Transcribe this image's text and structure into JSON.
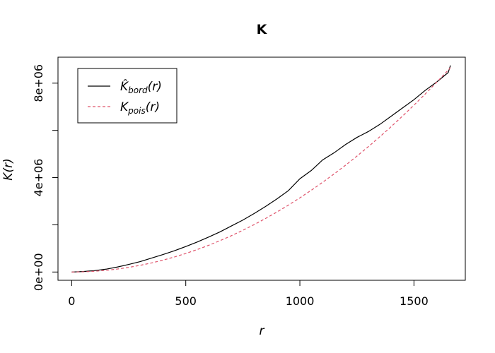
{
  "chart_data": {
    "type": "line",
    "title": "K",
    "xlabel": "r",
    "ylabel": "K(r)",
    "xlim": [
      -60,
      1725
    ],
    "ylim": [
      -350000,
      9100000
    ],
    "x_ticks": [
      0,
      500,
      1000,
      1500
    ],
    "x_tick_labels": [
      "0",
      "500",
      "1000",
      "1500"
    ],
    "y_ticks": [
      0,
      2000000,
      4000000,
      6000000,
      8000000
    ],
    "y_tick_labels": [
      "0e+00",
      "",
      "4e+06",
      "",
      "8e+06"
    ],
    "legend_position": "top-left",
    "series": [
      {
        "name": "K̂bord(r)",
        "legend_base": "K̂",
        "legend_sub": "bord",
        "legend_tail": "(r)",
        "color": "#000000",
        "style": "solid",
        "x": [
          0,
          50,
          100,
          150,
          200,
          250,
          300,
          350,
          400,
          450,
          500,
          550,
          600,
          650,
          700,
          750,
          800,
          850,
          900,
          950,
          1000,
          1050,
          1100,
          1150,
          1200,
          1250,
          1300,
          1350,
          1400,
          1450,
          1500,
          1550,
          1600,
          1650,
          1660
        ],
        "y": [
          0,
          20000,
          60000,
          120000,
          210000,
          320000,
          440000,
          590000,
          740000,
          900000,
          1080000,
          1270000,
          1480000,
          1700000,
          1950000,
          2200000,
          2480000,
          2780000,
          3100000,
          3450000,
          3950000,
          4300000,
          4750000,
          5050000,
          5400000,
          5700000,
          5950000,
          6250000,
          6600000,
          6950000,
          7300000,
          7700000,
          8050000,
          8450000,
          8750000
        ]
      },
      {
        "name": "Kpois(r)",
        "legend_base": "K",
        "legend_sub": "pois",
        "legend_tail": "(r)",
        "color": "#DF536B",
        "style": "dashed",
        "x": [
          0,
          50,
          100,
          150,
          200,
          250,
          300,
          350,
          400,
          450,
          500,
          550,
          600,
          650,
          700,
          750,
          800,
          850,
          900,
          950,
          1000,
          1050,
          1100,
          1150,
          1200,
          1250,
          1300,
          1350,
          1400,
          1450,
          1500,
          1550,
          1600,
          1650,
          1660
        ],
        "y": [
          0,
          7850,
          31400,
          70700,
          125700,
          196300,
          282700,
          384800,
          502700,
          636200,
          785400,
          950300,
          1131000,
          1327300,
          1539400,
          1767100,
          2010600,
          2269800,
          2544700,
          2835300,
          3141600,
          3463600,
          3801300,
          4154800,
          4523900,
          4908700,
          5309300,
          5725500,
          6157500,
          6605200,
          7068600,
          7547700,
          8042500,
          8553000,
          8657000
        ]
      }
    ]
  }
}
